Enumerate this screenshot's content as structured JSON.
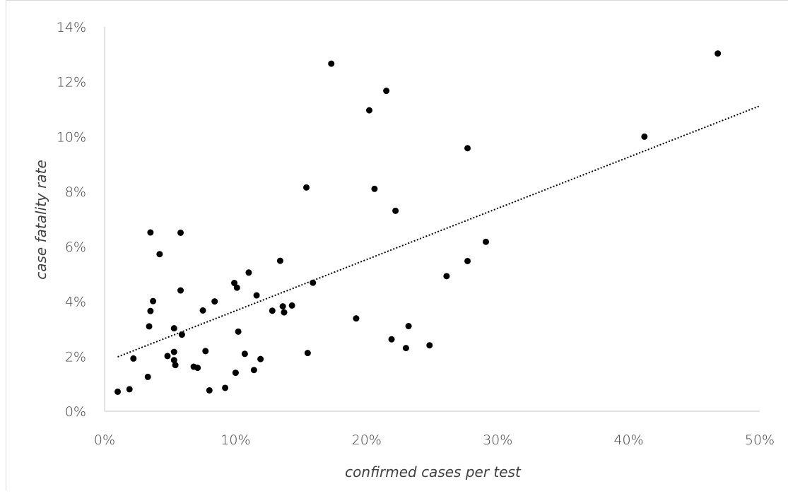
{
  "chart_data": {
    "type": "scatter",
    "title": "",
    "xlabel": "confirmed cases per test",
    "ylabel": "case fatality rate",
    "xlim": [
      0,
      0.5
    ],
    "ylim": [
      0,
      0.14
    ],
    "x_ticks": [
      "0%",
      "10%",
      "20%",
      "30%",
      "40%",
      "50%"
    ],
    "y_ticks": [
      "0%",
      "2%",
      "4%",
      "6%",
      "8%",
      "10%",
      "12%",
      "14%"
    ],
    "grid": false,
    "legend": "none",
    "trendline": {
      "type": "linear",
      "style": "dotted",
      "x": [
        0.01,
        0.5
      ],
      "y": [
        0.0198,
        0.1112
      ]
    },
    "points": [
      [
        0.01,
        0.0071
      ],
      [
        0.019,
        0.008
      ],
      [
        0.022,
        0.0192
      ],
      [
        0.033,
        0.0125
      ],
      [
        0.034,
        0.0309
      ],
      [
        0.035,
        0.0651
      ],
      [
        0.035,
        0.0365
      ],
      [
        0.037,
        0.0401
      ],
      [
        0.042,
        0.0572
      ],
      [
        0.048,
        0.0201
      ],
      [
        0.053,
        0.0302
      ],
      [
        0.053,
        0.0216
      ],
      [
        0.053,
        0.0186
      ],
      [
        0.054,
        0.0168
      ],
      [
        0.058,
        0.065
      ],
      [
        0.058,
        0.044
      ],
      [
        0.059,
        0.0279
      ],
      [
        0.068,
        0.0162
      ],
      [
        0.071,
        0.0158
      ],
      [
        0.075,
        0.0367
      ],
      [
        0.077,
        0.0219
      ],
      [
        0.08,
        0.0076
      ],
      [
        0.084,
        0.04
      ],
      [
        0.092,
        0.0085
      ],
      [
        0.099,
        0.0467
      ],
      [
        0.1,
        0.014
      ],
      [
        0.101,
        0.045
      ],
      [
        0.102,
        0.029
      ],
      [
        0.107,
        0.0209
      ],
      [
        0.11,
        0.0505
      ],
      [
        0.114,
        0.015
      ],
      [
        0.116,
        0.0422
      ],
      [
        0.119,
        0.019
      ],
      [
        0.128,
        0.0366
      ],
      [
        0.134,
        0.0548
      ],
      [
        0.136,
        0.0382
      ],
      [
        0.137,
        0.036
      ],
      [
        0.143,
        0.0385
      ],
      [
        0.154,
        0.0815
      ],
      [
        0.155,
        0.0212
      ],
      [
        0.159,
        0.0468
      ],
      [
        0.173,
        0.1266
      ],
      [
        0.192,
        0.0338
      ],
      [
        0.202,
        0.1096
      ],
      [
        0.206,
        0.081
      ],
      [
        0.215,
        0.1167
      ],
      [
        0.219,
        0.0262
      ],
      [
        0.222,
        0.073
      ],
      [
        0.23,
        0.023
      ],
      [
        0.232,
        0.031
      ],
      [
        0.248,
        0.024
      ],
      [
        0.261,
        0.0492
      ],
      [
        0.277,
        0.0958
      ],
      [
        0.277,
        0.0547
      ],
      [
        0.291,
        0.0617
      ],
      [
        0.412,
        0.1
      ],
      [
        0.468,
        0.1303
      ]
    ]
  }
}
